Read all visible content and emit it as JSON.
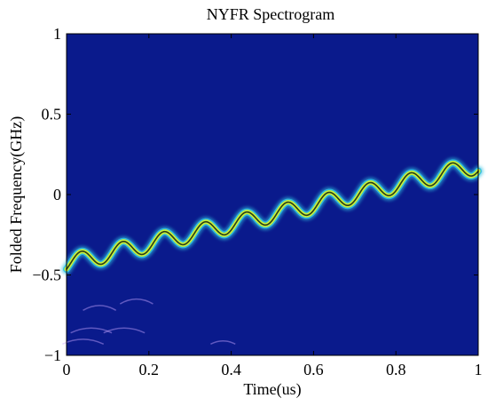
{
  "chart_data": {
    "type": "heatmap",
    "title": "NYFR Spectrogram",
    "xlabel": "Time(us)",
    "ylabel": "Folded Frequency(GHz)",
    "xlim": [
      0,
      1
    ],
    "ylim": [
      -1,
      1
    ],
    "x_ticks": [
      0,
      0.2,
      0.4,
      0.6,
      0.8,
      1
    ],
    "x_tick_labels": [
      "0",
      "0.2",
      "0.4",
      "0.6",
      "0.8",
      "1"
    ],
    "y_ticks": [
      1,
      0.5,
      0,
      -0.5,
      -1
    ],
    "y_tick_labels": [
      "1",
      "0.5",
      "0",
      "−0.5",
      "−1"
    ],
    "background_color": "#0a1a8c",
    "ridge": {
      "description_of_trend": "linear chirp with sinusoidal modulation",
      "start_frequency": -0.43,
      "end_frequency": 0.18,
      "modulation_amplitude": 0.055,
      "modulation_cycles": 10,
      "colors": [
        "#2fbfe0",
        "#c8f03c",
        "#1a2a10"
      ]
    },
    "grid": false
  }
}
